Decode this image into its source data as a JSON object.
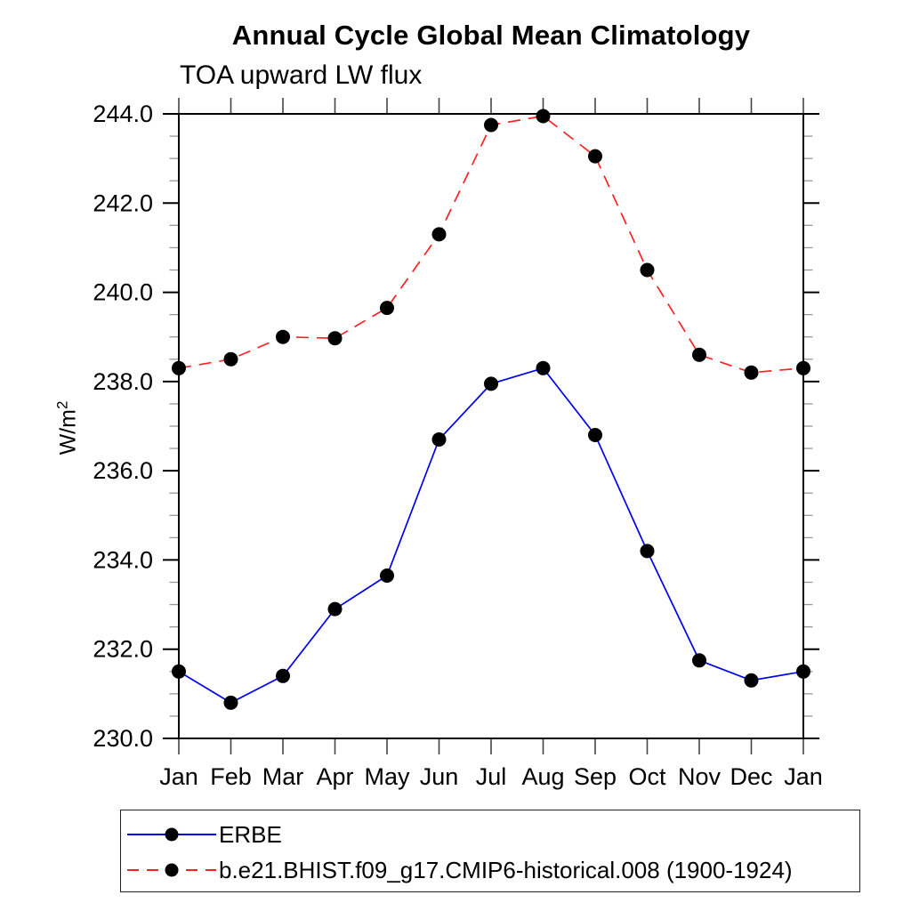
{
  "chart_data": {
    "type": "line",
    "title": "Annual Cycle Global Mean Climatology",
    "subtitle": "TOA upward LW flux",
    "ylabel_base": "W/m",
    "ylabel_superscript": "2",
    "categories": [
      "Jan",
      "Feb",
      "Mar",
      "Apr",
      "May",
      "Jun",
      "Jul",
      "Aug",
      "Sep",
      "Oct",
      "Nov",
      "Dec",
      "Jan"
    ],
    "ylim": [
      230.0,
      244.0
    ],
    "y_major_tick_step": 2.0,
    "y_minor_tick_step": 0.5,
    "y_tick_labels": [
      "230.0",
      "232.0",
      "234.0",
      "236.0",
      "238.0",
      "240.0",
      "242.0",
      "244.0"
    ],
    "grid": false,
    "legend_position": "framed box, bottom left",
    "series": [
      {
        "name": "ERBE",
        "color": "#0000ee",
        "line_style": "solid",
        "marker": "filled-circle",
        "marker_color": "#000000",
        "values": [
          231.5,
          230.8,
          231.4,
          232.9,
          233.65,
          236.7,
          237.95,
          238.3,
          236.8,
          234.2,
          231.75,
          231.3,
          231.5
        ]
      },
      {
        "name": "b.e21.BHIST.f09_g17.CMIP6-historical.008 (1900-1924)",
        "color": "#ff2222",
        "line_style": "dashed",
        "marker": "filled-circle",
        "marker_color": "#000000",
        "values": [
          238.3,
          238.5,
          239.0,
          238.97,
          239.65,
          241.3,
          243.75,
          243.95,
          243.05,
          240.5,
          238.6,
          238.2,
          238.3
        ]
      }
    ],
    "colors": {
      "axis": "#000000",
      "major_tick": "#000000",
      "minor_tick": "#999999",
      "month_tick": "#444444",
      "text": "#000000",
      "background": "#ffffff"
    }
  }
}
